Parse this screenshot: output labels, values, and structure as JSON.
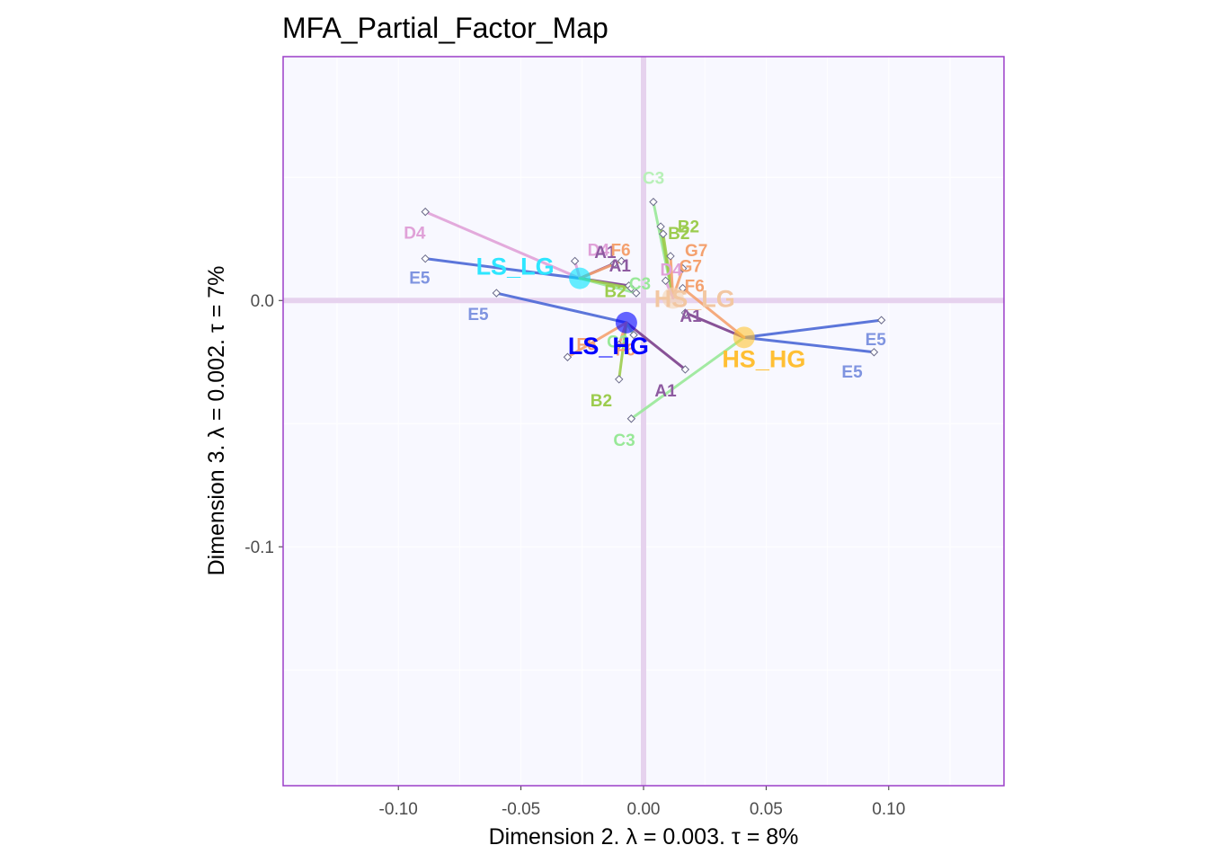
{
  "chart_data": {
    "type": "scatter",
    "title": "MFA_Partial_Factor_Map",
    "xlabel": "Dimension 2.   λ = 0.003.  τ = 8%",
    "ylabel": "Dimension 3.   λ = 0.002.  τ = 7%",
    "xlim": [
      -0.147,
      0.147
    ],
    "ylim": [
      -0.197,
      0.099
    ],
    "x_ticks": [
      -0.1,
      -0.05,
      0.0,
      0.05,
      0.1
    ],
    "x_tick_labels": [
      "-0.10",
      "-0.05",
      "0.00",
      "0.05",
      "0.10"
    ],
    "y_ticks": [
      0.0,
      -0.1
    ],
    "y_tick_labels": [
      "0.0",
      "-0.1"
    ],
    "grid": true,
    "colors": {
      "panel_bg": "#f8f8ff",
      "panel_border": "#9b3fc8",
      "origin_lines": "#e6d2ee",
      "grid": "#ffffff"
    },
    "groups": [
      {
        "name": "LS_LG",
        "x": -0.026,
        "y": 0.009,
        "color": "#00e5ff",
        "label_dx": -72,
        "label_dy": -4,
        "label_color": "#2ee6ff"
      },
      {
        "name": "LS_HG",
        "x": -0.007,
        "y": -0.009,
        "color": "#0000ff",
        "label_dx": -20,
        "label_dy": 35,
        "label_color": "#0000ff"
      },
      {
        "name": "HS_HG",
        "x": 0.041,
        "y": -0.015,
        "color": "#ffc533",
        "label_dx": 22,
        "label_dy": 33,
        "label_color": "#ffbf33"
      },
      {
        "name": "HS_LG",
        "x": 0.012,
        "y": 0.001,
        "color": "#f5d3b0",
        "label_dx": 24,
        "label_dy": 10,
        "label_color": "#f2c7a2"
      }
    ],
    "partial_points": [
      {
        "label": "D4",
        "group": "LS_LG",
        "x": -0.089,
        "y": 0.036,
        "color": "#e0a1d8",
        "label_dx": -24,
        "label_dy": 30
      },
      {
        "label": "E5",
        "group": "LS_LG",
        "x": -0.089,
        "y": 0.017,
        "color": "#4a67d6",
        "label_dx": -18,
        "label_dy": 28,
        "label_color": "#7f94e0"
      },
      {
        "label": "D4",
        "group": "LS_LG",
        "x": -0.028,
        "y": 0.016,
        "color": "#e0a1d8",
        "label_dx": 14,
        "label_dy": -6
      },
      {
        "label": "A1",
        "group": "LS_LG",
        "x": -0.012,
        "y": 0.015,
        "color": "#7b3f8c",
        "label_dx": -22,
        "label_dy": -6,
        "label_color": "#8e5aa1"
      },
      {
        "label": "A1",
        "group": "LS_LG",
        "x": -0.006,
        "y": 0.006,
        "color": "#7b3f8c",
        "label_dx": -22,
        "label_dy": -16,
        "label_color": "#8e5aa1"
      },
      {
        "label": "F6",
        "group": "LS_LG",
        "x": -0.009,
        "y": 0.016,
        "color": "#f4a16f",
        "label_dx": -12,
        "label_dy": -6
      },
      {
        "label": "C3",
        "group": "LS_LG",
        "x": -0.003,
        "y": 0.003,
        "color": "#98e898",
        "label_dx": -8,
        "label_dy": -4
      },
      {
        "label": "B2",
        "group": "LS_LG",
        "x": -0.005,
        "y": 0.005,
        "color": "#9ccc4e",
        "label_dx": -30,
        "label_dy": 10
      },
      {
        "label": "E5",
        "group": "LS_HG",
        "x": -0.06,
        "y": 0.003,
        "color": "#4a67d6",
        "label_dx": -32,
        "label_dy": 30,
        "label_color": "#7f94e0"
      },
      {
        "label": "A1",
        "group": "LS_HG",
        "x": 0.017,
        "y": -0.028,
        "color": "#7b3f8c",
        "label_dx": -34,
        "label_dy": 30,
        "label_color": "#8e5aa1"
      },
      {
        "label": "B2",
        "group": "LS_HG",
        "x": -0.01,
        "y": -0.032,
        "color": "#9ccc4e",
        "label_dx": -32,
        "label_dy": 30
      },
      {
        "label": "C3",
        "group": "LS_HG",
        "x": -0.004,
        "y": -0.014,
        "color": "#98e898",
        "label_dx": -30,
        "label_dy": 14
      },
      {
        "label": "F6",
        "group": "LS_HG",
        "x": -0.031,
        "y": -0.023,
        "color": "#f4a16f",
        "label_dx": 10,
        "label_dy": -8
      },
      {
        "label": "F6",
        "group": "LS_HG",
        "x": -0.01,
        "y": -0.018,
        "color": "#f4a16f",
        "label_dx": -4,
        "label_dy": 12
      },
      {
        "label": "E5",
        "group": "HS_HG",
        "x": 0.097,
        "y": -0.008,
        "color": "#4a67d6",
        "label_dx": -18,
        "label_dy": 28,
        "label_color": "#7f94e0"
      },
      {
        "label": "E5",
        "group": "HS_HG",
        "x": 0.094,
        "y": -0.021,
        "color": "#4a67d6",
        "label_dx": -36,
        "label_dy": 28,
        "label_color": "#7f94e0"
      },
      {
        "label": "C3",
        "group": "HS_HG",
        "x": -0.005,
        "y": -0.048,
        "color": "#98e898",
        "label_dx": -20,
        "label_dy": 30
      },
      {
        "label": "A1",
        "group": "HS_HG",
        "x": 0.017,
        "y": -0.005,
        "color": "#7b3f8c",
        "label_dx": -6,
        "label_dy": 10,
        "label_color": "#8e5aa1"
      },
      {
        "label": "F6",
        "group": "HS_HG",
        "x": 0.016,
        "y": 0.005,
        "color": "#f4a16f",
        "label_dx": 2,
        "label_dy": 4
      },
      {
        "label": "C3",
        "group": "HS_LG",
        "x": 0.004,
        "y": 0.04,
        "color": "#98e898",
        "label_dx": -12,
        "label_dy": -20,
        "label_color": "#b8f0b8"
      },
      {
        "label": "B2",
        "group": "HS_LG",
        "x": 0.007,
        "y": 0.03,
        "color": "#9ccc4e",
        "label_dx": 8,
        "label_dy": 14
      },
      {
        "label": "B2",
        "group": "HS_LG",
        "x": 0.008,
        "y": 0.027,
        "color": "#9ccc4e",
        "label_dx": 16,
        "label_dy": -2
      },
      {
        "label": "G7",
        "group": "HS_LG",
        "x": 0.011,
        "y": 0.018,
        "color": "#f4a16f",
        "label_dx": 16,
        "label_dy": 0
      },
      {
        "label": "G7",
        "group": "HS_LG",
        "x": 0.016,
        "y": 0.013,
        "color": "#f4a16f",
        "label_dx": -4,
        "label_dy": 4
      },
      {
        "label": "D4",
        "group": "HS_LG",
        "x": 0.009,
        "y": 0.008,
        "color": "#e0a1d8",
        "label_dx": -6,
        "label_dy": -6
      }
    ]
  }
}
